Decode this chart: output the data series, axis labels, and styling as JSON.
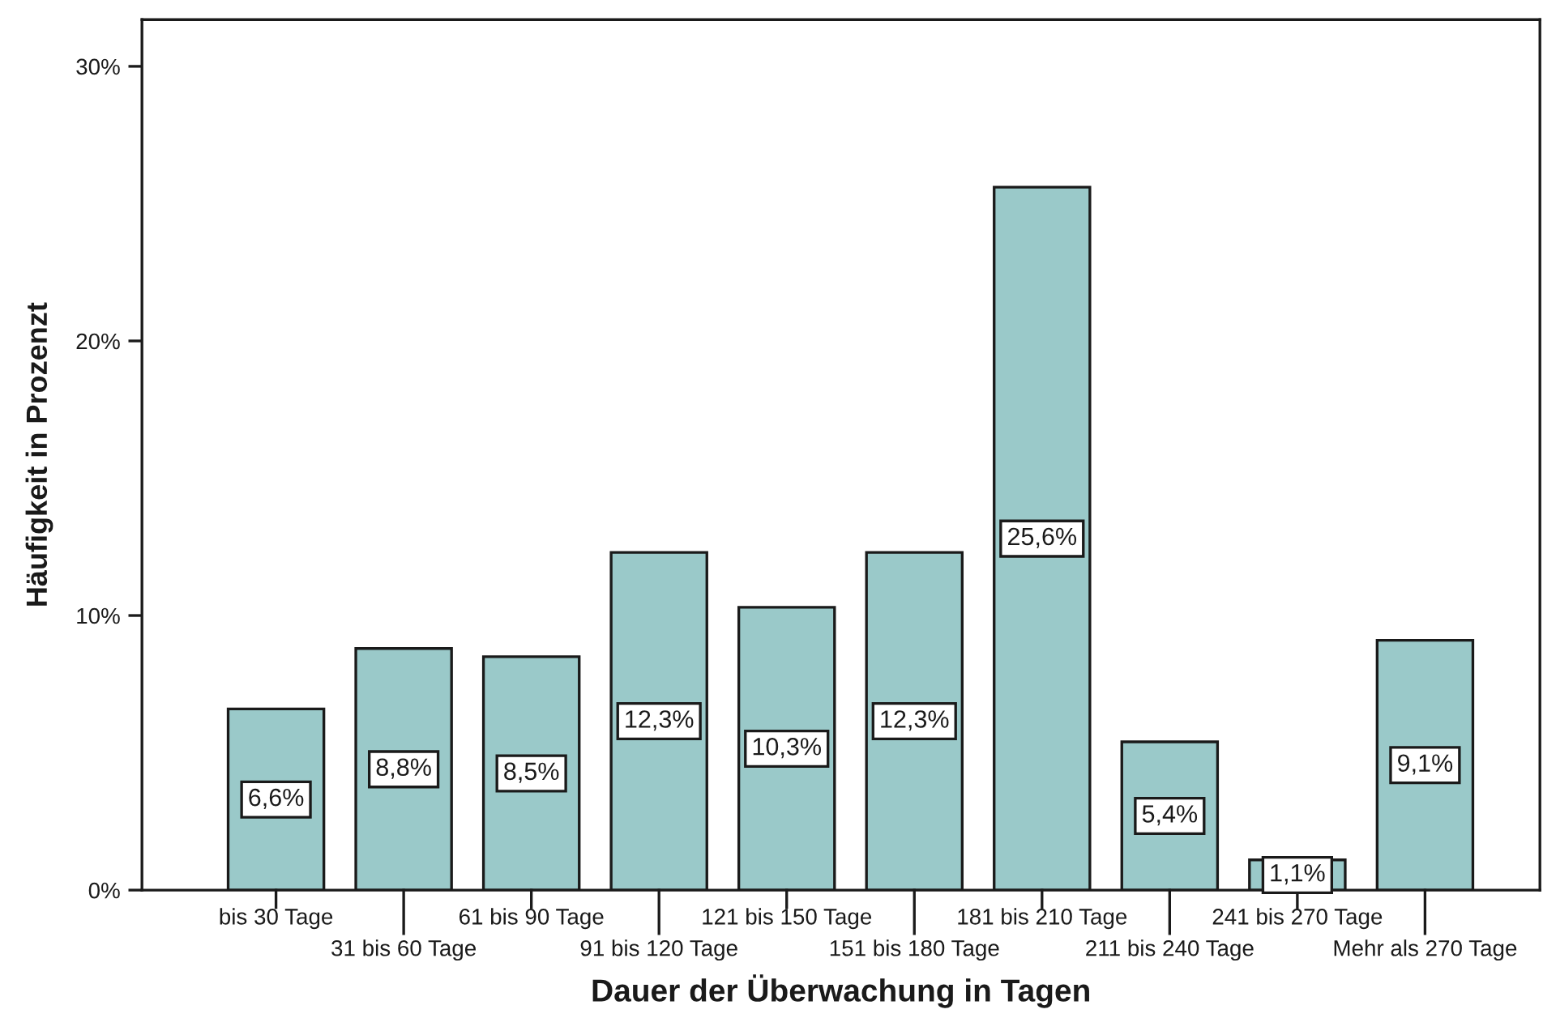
{
  "chart_data": {
    "type": "bar",
    "xlabel": "Dauer der Überwachung in Tagen",
    "ylabel": "Häufigkeit in Prozenzt",
    "categories": [
      "bis 30 Tage",
      "31 bis 60 Tage",
      "61 bis 90 Tage",
      "91 bis 120 Tage",
      "121 bis 150 Tage",
      "151 bis 180 Tage",
      "181 bis 210 Tage",
      "211 bis 240 Tage",
      "241 bis 270 Tage",
      "Mehr als 270 Tage"
    ],
    "values": [
      6.6,
      8.8,
      8.5,
      12.3,
      10.3,
      12.3,
      25.6,
      5.4,
      1.1,
      9.1
    ],
    "value_labels": [
      "6,6%",
      "8,8%",
      "8,5%",
      "12,3%",
      "10,3%",
      "12,3%",
      "25,6%",
      "5,4%",
      "1,1%",
      "9,1%"
    ],
    "color": "#9ac9c9",
    "ylim": [
      0,
      31.7
    ],
    "yticks": [
      {
        "value": 0,
        "label": "0%"
      },
      {
        "value": 10,
        "label": "10%"
      },
      {
        "value": 20,
        "label": "20%"
      },
      {
        "value": 30,
        "label": "30%"
      }
    ],
    "grid": false
  }
}
